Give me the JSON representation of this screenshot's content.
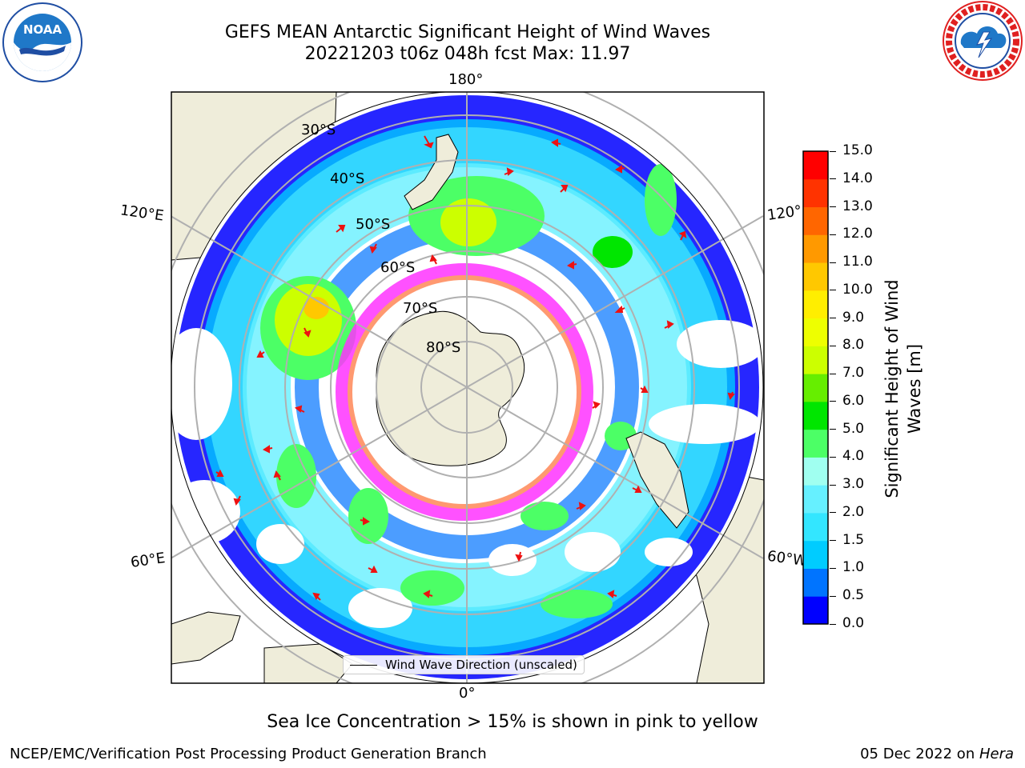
{
  "header": {
    "title_line1": "GEFS MEAN Antarctic Significant Height of Wind Waves",
    "title_line2": "20221203 t06z 048h fcst   Max: 11.97"
  },
  "logos": {
    "noaa_text": "NOAA",
    "noaa_ring": "NATIONAL OCEANIC AND ATMOSPHERIC ADMINISTRATION · U.S. DEPARTMENT OF COMMERCE",
    "nws_ring": "NATIONAL WEATHER SERVICE"
  },
  "map": {
    "lon_labels": {
      "top": "180°",
      "left_upper": "120°E",
      "right_upper": "120°",
      "left_lower": "60°E",
      "right_lower": "60°W",
      "bottom": "0°"
    },
    "lat_labels": [
      "30°S",
      "40°S",
      "50°S",
      "60°S",
      "70°S",
      "80°S"
    ],
    "legend_label": "Wind Wave Direction (unscaled)"
  },
  "colorbar": {
    "title_line1": "Significant Height of Wind",
    "title_line2": "Waves [m]",
    "ticks": [
      "0.0",
      "0.5",
      "1.0",
      "1.5",
      "2.0",
      "3.0",
      "4.0",
      "5.0",
      "6.0",
      "7.0",
      "8.0",
      "9.0",
      "10.0",
      "11.0",
      "12.0",
      "13.0",
      "14.0",
      "15.0"
    ],
    "colors": [
      "#0000ff",
      "#0074ff",
      "#00ccff",
      "#33e6ff",
      "#66f0ff",
      "#a0fff0",
      "#4cff66",
      "#00e600",
      "#66ee00",
      "#ccff00",
      "#eeff00",
      "#ffee00",
      "#ffc800",
      "#ff9900",
      "#ff6600",
      "#ff3300",
      "#ff0000"
    ]
  },
  "notes": {
    "sea_ice": "Sea Ice Concentration > 15% is shown in pink to yellow"
  },
  "footer": {
    "left": "NCEP/EMC/Verification Post Processing Product Generation Branch",
    "right_prefix": "05 Dec 2022 on ",
    "right_host": "Hera"
  }
}
